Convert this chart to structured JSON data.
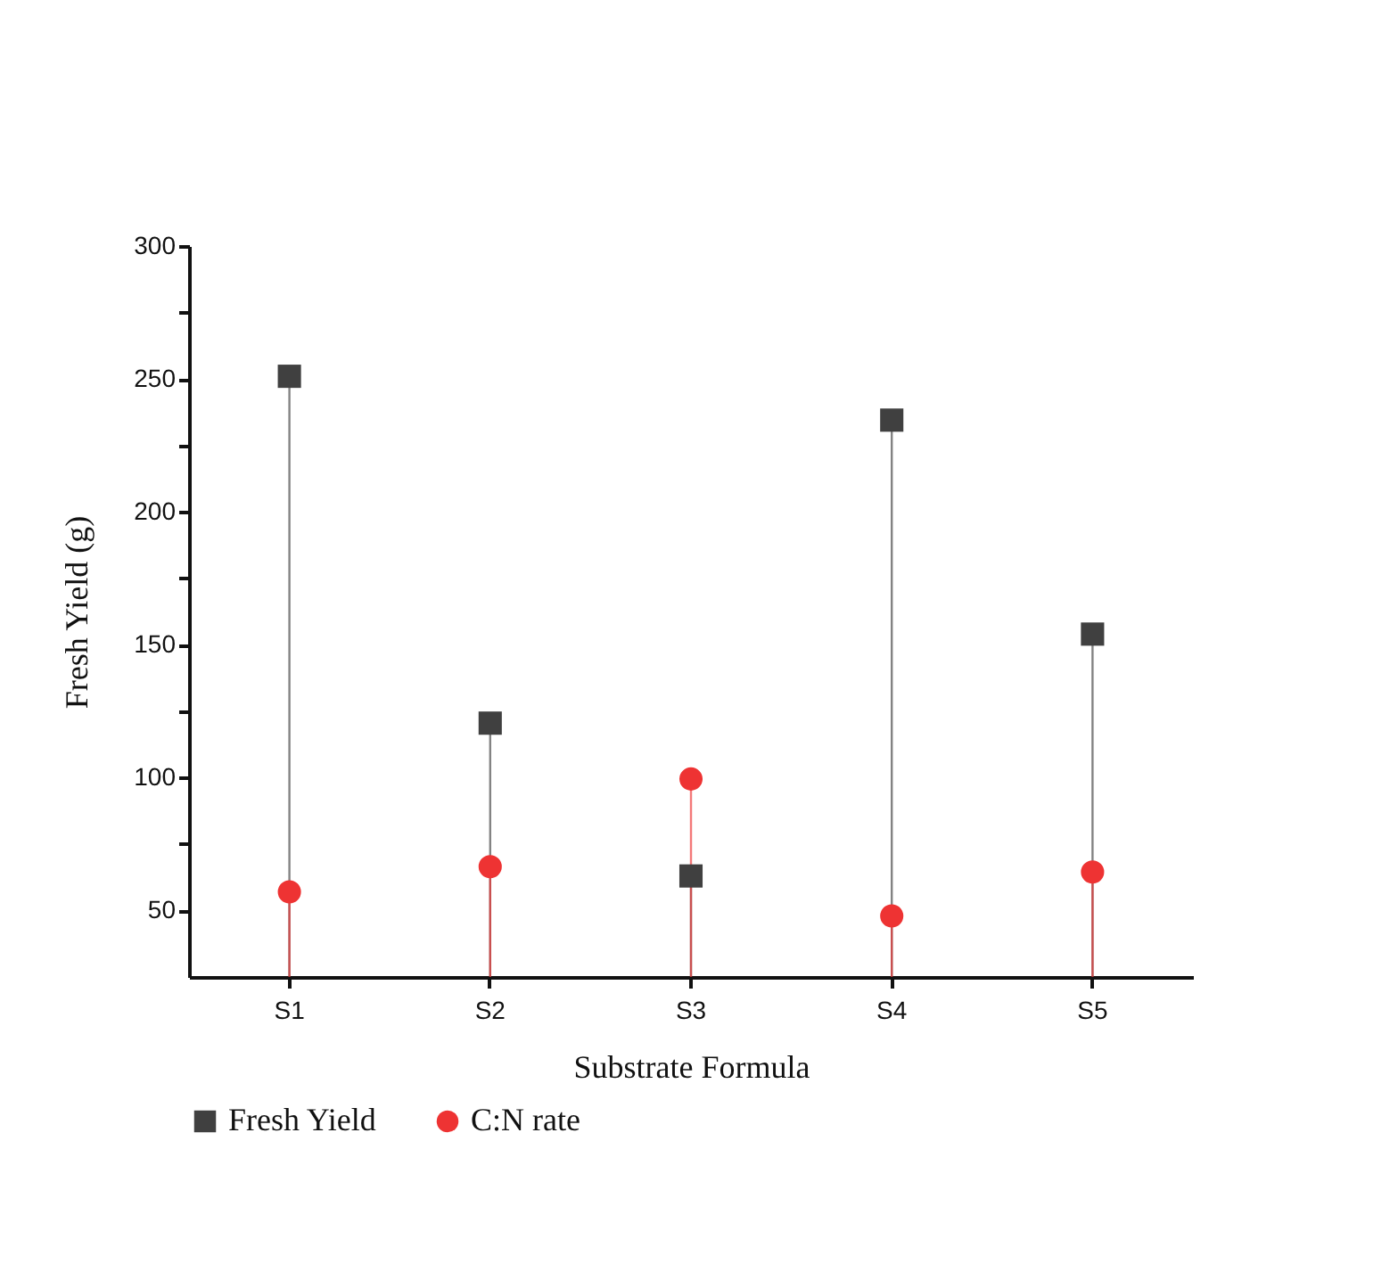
{
  "chart_data": {
    "type": "lollipop",
    "xlabel": "Substrate Formula",
    "ylabel": "Fresh Yield (g)",
    "categories": [
      "S1",
      "S2",
      "S3",
      "S4",
      "S5"
    ],
    "series": [
      {
        "name": "Fresh Yield",
        "color": "#404040",
        "marker": "square",
        "values": [
          251,
          120.5,
          63,
          234.5,
          154
        ]
      },
      {
        "name": "C:N rate",
        "color": "#ee3333",
        "marker": "circle",
        "values": [
          57,
          66.5,
          99.5,
          48,
          64.5
        ]
      }
    ],
    "ylim": [
      25,
      300
    ],
    "yticks": [
      50,
      {
        "value": 75,
        "label": null
      },
      100,
      {
        "value": 125,
        "label": null
      },
      150,
      {
        "value": 175,
        "label": null
      },
      200,
      {
        "value": 225,
        "label": null
      },
      250,
      {
        "value": 275,
        "label": null
      },
      300
    ],
    "legend": "bottom"
  }
}
